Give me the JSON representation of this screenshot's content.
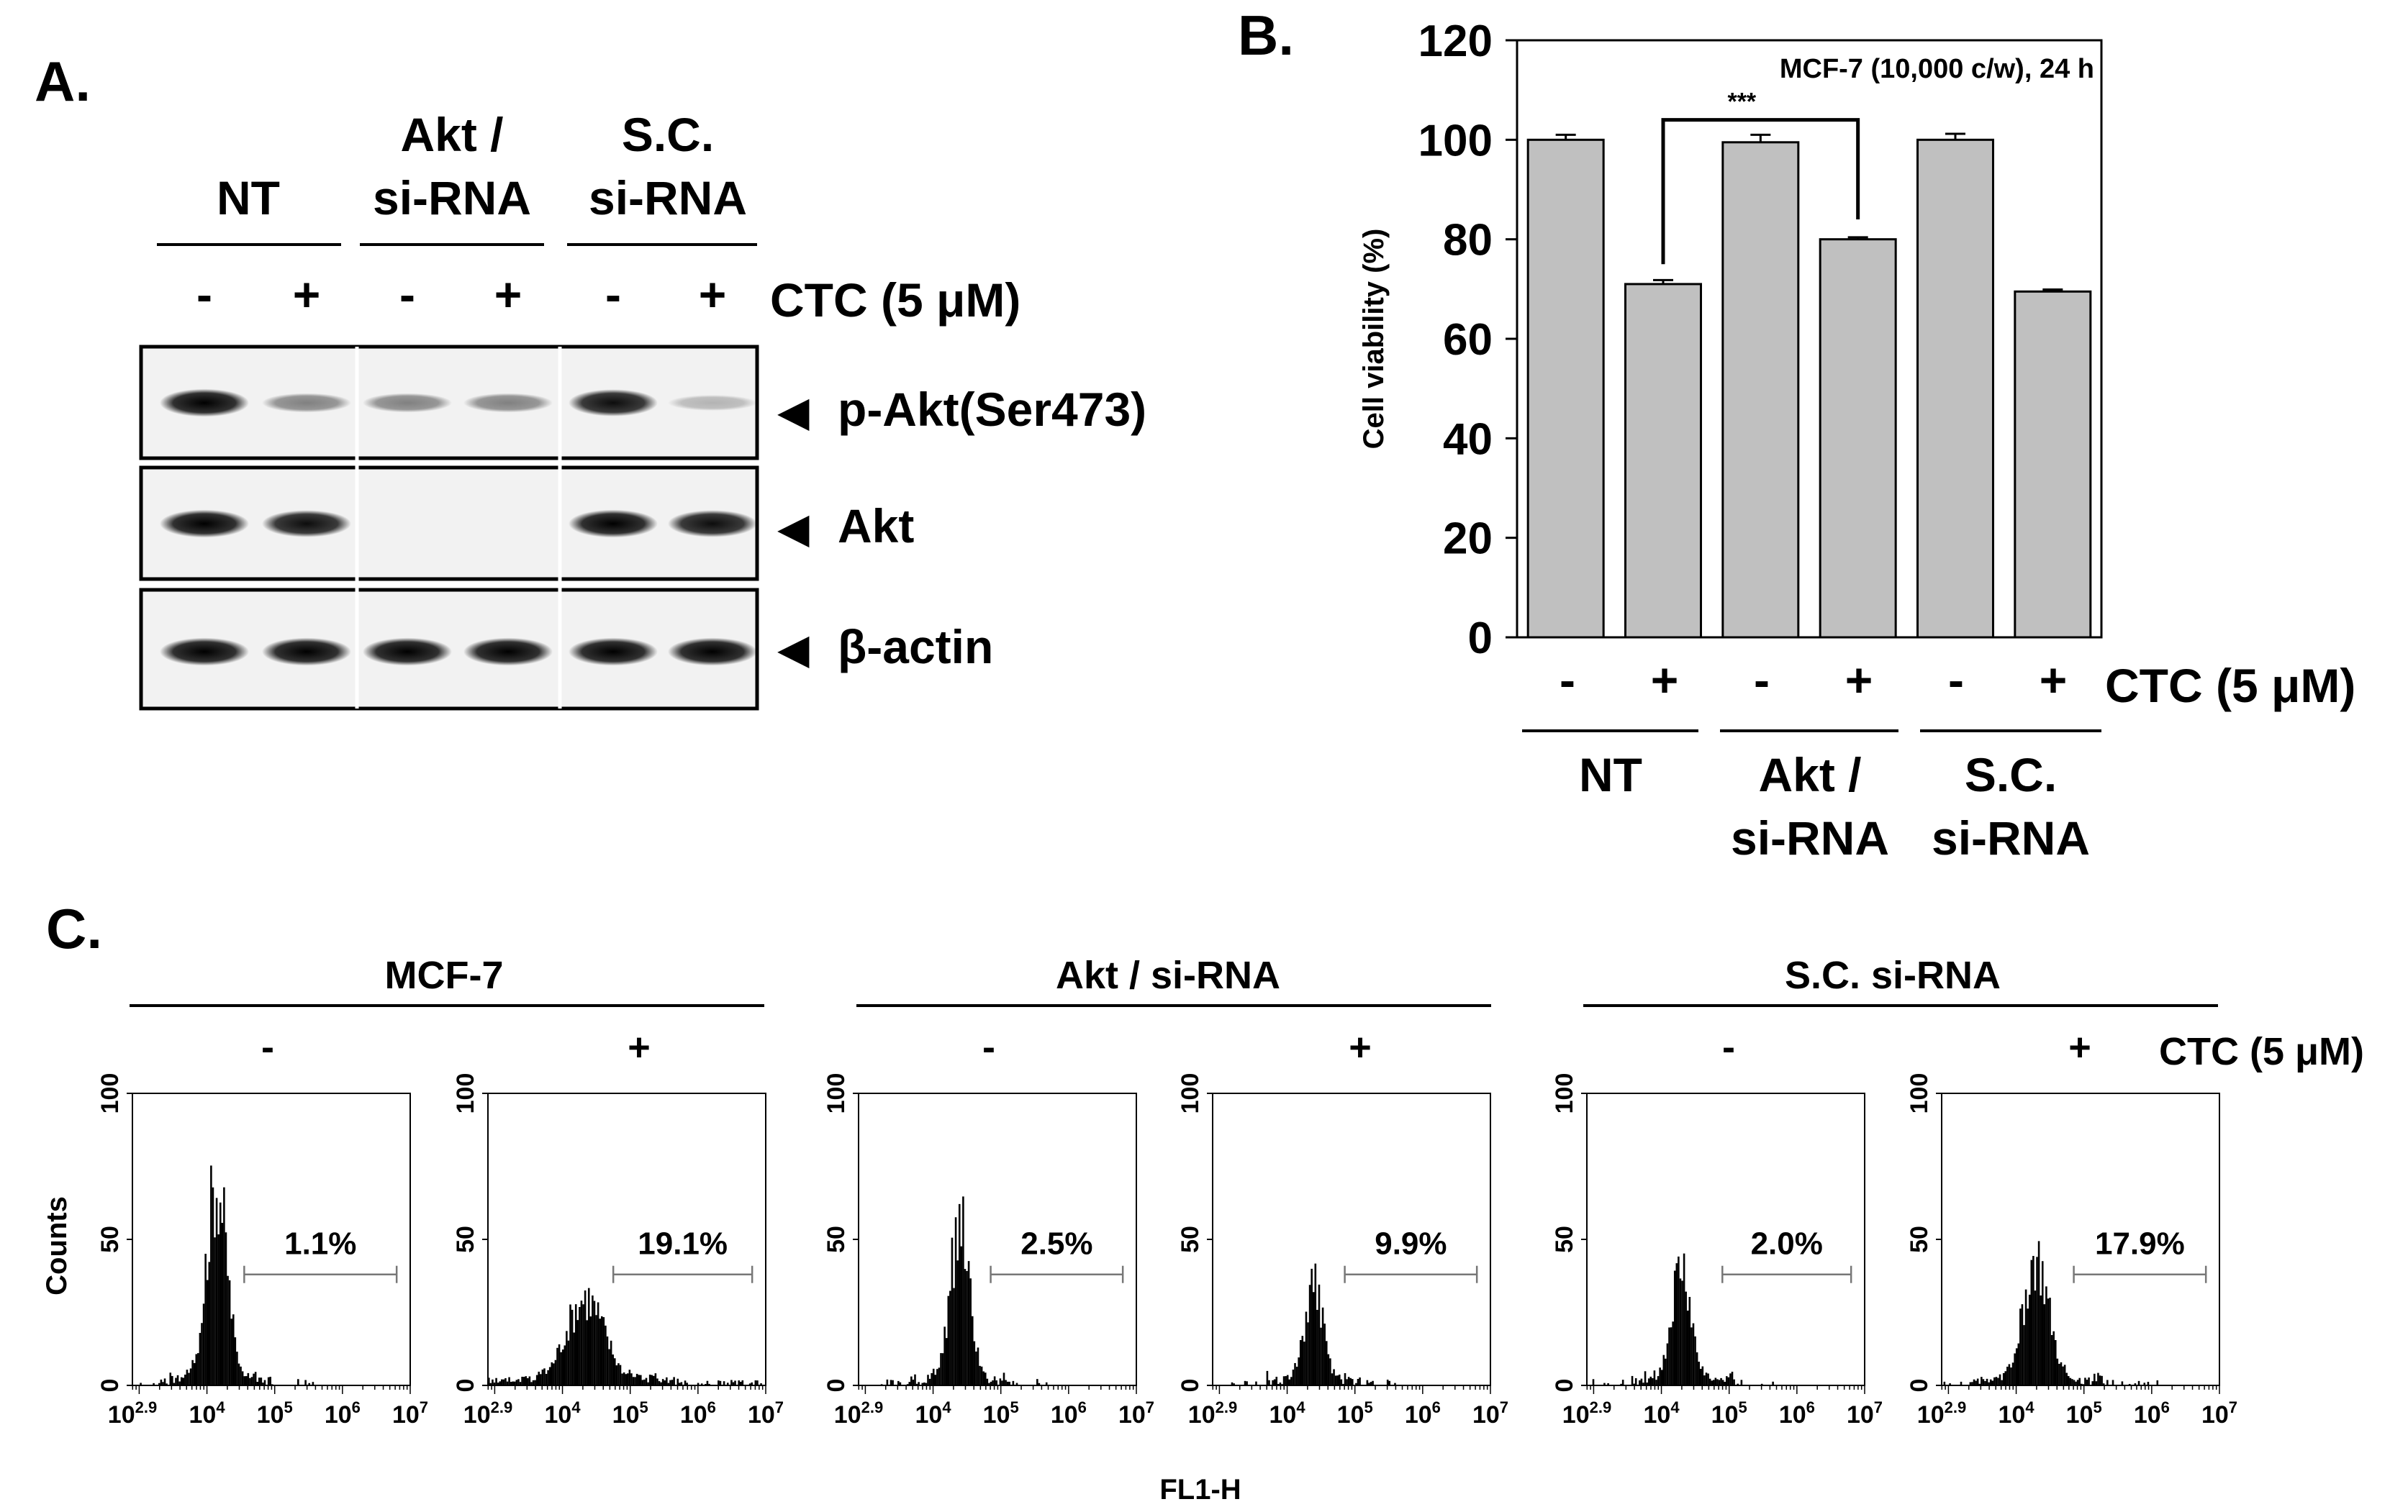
{
  "panel_a": {
    "letter": "A.",
    "groups": [
      {
        "line1": "",
        "line2": "NT"
      },
      {
        "line1": "Akt /",
        "line2": "si-RNA"
      },
      {
        "line1": "S.C.",
        "line2": "si-RNA"
      }
    ],
    "treatment_signs": [
      "-",
      "+",
      "-",
      "+",
      "-",
      "+"
    ],
    "treatment_label": "CTC (5 μM)",
    "blot_rows": [
      {
        "arrow": "◀",
        "label": "p-Akt(Ser473)",
        "intensities": [
          0.95,
          0.45,
          0.45,
          0.45,
          0.9,
          0.25
        ]
      },
      {
        "arrow": "◀",
        "label": "Akt",
        "intensities": [
          0.95,
          0.9,
          0.04,
          0.03,
          0.95,
          0.9
        ]
      },
      {
        "arrow": "◀",
        "label": "β-actin",
        "intensities": [
          0.95,
          0.95,
          0.95,
          0.95,
          0.95,
          0.95
        ]
      }
    ]
  },
  "panel_b": {
    "letter": "B.",
    "treatment_signs": [
      "-",
      "+",
      "-",
      "+",
      "-",
      "+"
    ],
    "treatment_label": "CTC (5 μM)",
    "groups": [
      {
        "line1": "NT",
        "line2": ""
      },
      {
        "line1": "Akt /",
        "line2": "si-RNA"
      },
      {
        "line1": "S.C.",
        "line2": "si-RNA"
      }
    ]
  },
  "panel_c": {
    "letter": "C.",
    "groups": [
      "MCF-7",
      "Akt / si-RNA",
      "S.C. si-RNA"
    ],
    "treatment_signs": [
      "-",
      "+",
      "-",
      "+",
      "-",
      "+"
    ],
    "treatment_label": "CTC (5 μM)",
    "y_axis_label": "Counts",
    "x_axis_label": "FL1-H",
    "y_ticks": [
      "100",
      "50",
      "0"
    ],
    "x_tick_base": "10",
    "x_tick_exps": [
      "2.9",
      "4",
      "5",
      "6",
      "7"
    ]
  },
  "chart_data": [
    {
      "type": "bar",
      "title": "MCF-7 (10,000 c/w), 24 h",
      "ylabel": "Cell viability (%)",
      "xlabel": "",
      "ylim": [
        0,
        120
      ],
      "yticks": [
        0,
        20,
        40,
        60,
        80,
        100,
        120
      ],
      "categories": [
        "NT -",
        "NT +",
        "Akt/si-RNA -",
        "Akt/si-RNA +",
        "S.C. si-RNA -",
        "S.C. si-RNA +"
      ],
      "values": [
        100,
        71,
        99.5,
        80,
        100,
        69.5
      ],
      "errors": [
        1.0,
        0.8,
        1.5,
        0.4,
        1.2,
        0.4
      ],
      "significance": {
        "from": 1,
        "to": 3,
        "label": "***"
      },
      "bar_color": "#c0c0c0"
    },
    {
      "type": "histogram",
      "panel": "MCF-7 -",
      "xscale": "log",
      "xlim_exp": [
        2.9,
        7
      ],
      "ylim": [
        0,
        100
      ],
      "peak_center_exp": 4.15,
      "peak_width_exp": 0.16,
      "peak_height": 70,
      "gate_exp": [
        4.55,
        6.8
      ],
      "gate_percent": "1.1%"
    },
    {
      "type": "histogram",
      "panel": "MCF-7 +",
      "xscale": "log",
      "xlim_exp": [
        2.9,
        7
      ],
      "ylim": [
        0,
        100
      ],
      "peak_center_exp": 4.35,
      "peak_width_exp": 0.3,
      "peak_height": 30,
      "gate_exp": [
        4.75,
        6.8
      ],
      "gate_percent": "19.1%"
    },
    {
      "type": "histogram",
      "panel": "Akt/si-RNA -",
      "xscale": "log",
      "xlim_exp": [
        2.9,
        7
      ],
      "ylim": [
        0,
        100
      ],
      "peak_center_exp": 4.4,
      "peak_width_exp": 0.15,
      "peak_height": 55,
      "gate_exp": [
        4.85,
        6.8
      ],
      "gate_percent": "2.5%"
    },
    {
      "type": "histogram",
      "panel": "Akt/si-RNA +",
      "xscale": "log",
      "xlim_exp": [
        2.9,
        7
      ],
      "ylim": [
        0,
        100
      ],
      "peak_center_exp": 4.4,
      "peak_width_exp": 0.14,
      "peak_height": 35,
      "gate_exp": [
        4.85,
        6.8
      ],
      "gate_percent": "9.9%"
    },
    {
      "type": "histogram",
      "panel": "S.C. si-RNA -",
      "xscale": "log",
      "xlim_exp": [
        2.9,
        7
      ],
      "ylim": [
        0,
        100
      ],
      "peak_center_exp": 4.3,
      "peak_width_exp": 0.15,
      "peak_height": 40,
      "gate_exp": [
        4.9,
        6.8
      ],
      "gate_percent": "2.0%"
    },
    {
      "type": "histogram",
      "panel": "S.C. si-RNA +",
      "xscale": "log",
      "xlim_exp": [
        2.9,
        7
      ],
      "ylim": [
        0,
        100
      ],
      "peak_center_exp": 4.3,
      "peak_width_exp": 0.2,
      "peak_height": 42,
      "gate_exp": [
        4.85,
        6.8
      ],
      "gate_percent": "17.9%"
    }
  ]
}
